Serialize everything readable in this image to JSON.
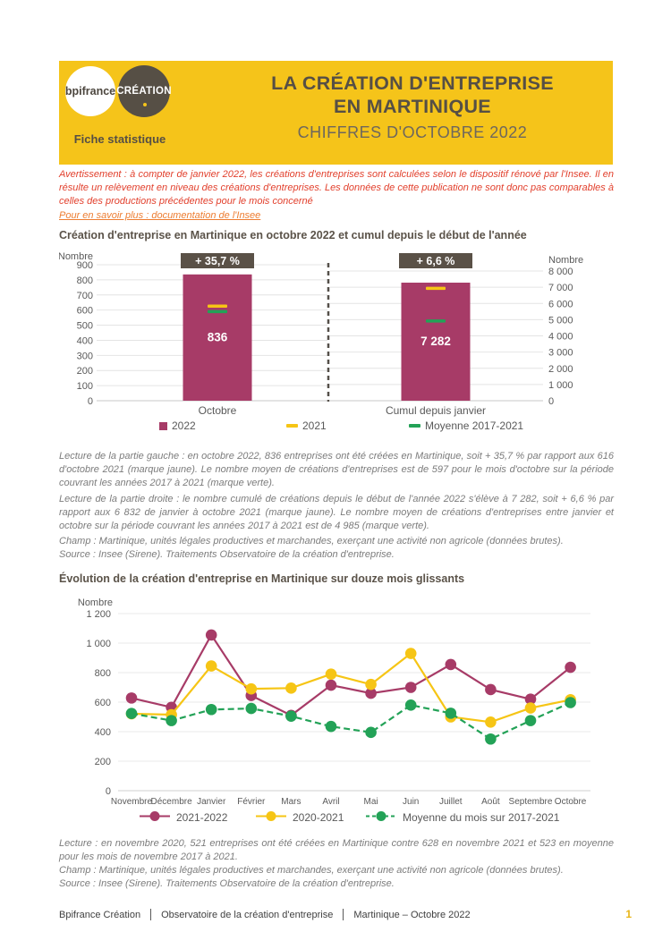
{
  "header": {
    "logo_primary": "bpifrance",
    "logo_secondary": "CRÉATION",
    "tagline": "Fiche statistique",
    "title_line1": "LA CRÉATION D'ENTREPRISE",
    "title_line2": "EN MARTINIQUE",
    "subtitle": "CHIFFRES D'OCTOBRE 2022",
    "bg_color": "#f5c41a"
  },
  "notice": {
    "warning": "Avertissement : à compter de janvier 2022, les créations d'entreprises sont calculées selon le dispositif rénové par l'Insee. Il en résulte un relèvement en niveau des créations d'entreprises. Les données de cette publication ne sont donc pas comparables à celles des productions précédentes pour le mois concerné",
    "link": "Pour en savoir plus : documentation de l'Insee"
  },
  "section1": {
    "title": "Création d'entreprise en Martinique en octobre 2022 et cumul depuis le début de l'année",
    "lecture_left": "Lecture de la partie gauche : en octobre 2022, 836 entreprises ont été créées en Martinique, soit + 35,7 % par rapport aux 616 d'octobre 2021 (marque jaune). Le nombre moyen de créations d'entreprises est de 597 pour le mois d'octobre sur la période couvrant les années 2017 à 2021 (marque verte).",
    "lecture_right": "Lecture de la partie droite : le nombre cumulé de créations depuis le début de l'année 2022 s'élève à 7 282, soit + 6,6 % par rapport aux 6 832 de janvier à octobre 2021 (marque jaune). Le nombre moyen de créations d'entreprises entre janvier et octobre sur la période couvrant les années 2017 à 2021 est de 4 985 (marque verte).",
    "champ": "Champ : Martinique, unités légales productives et marchandes, exerçant une activité non agricole (données brutes).",
    "source": "Source : Insee (Sirene). Traitements Observatoire de la création d'entreprise."
  },
  "section2": {
    "title": "Évolution de la création d'entreprise en Martinique sur douze mois glissants",
    "lecture": "Lecture : en novembre 2020, 521 entreprises ont été créées en Martinique contre 628 en novembre 2021 et 523 en moyenne pour les mois de novembre 2017 à 2021.",
    "champ": "Champ : Martinique, unités légales productives et marchandes, exerçant une activité non agricole (données brutes).",
    "source": "Source : Insee (Sirene). Traitements Observatoire de la création d'entreprise."
  },
  "footer": {
    "items": [
      "Bpifrance Création",
      "Observatoire de la création d'entreprise",
      "Martinique – Octobre 2022"
    ],
    "page": "1"
  },
  "chart_data": [
    {
      "type": "bar",
      "title": "Création d'entreprise en Martinique en octobre 2022 et cumul depuis le début de l'année",
      "ylabel_left": "Nombre",
      "ylabel_right": "Nombre",
      "legend": [
        "2022",
        "2021",
        "Moyenne 2017-2021"
      ],
      "colors": {
        "bar_2022": "#a73b67",
        "mark_2021": "#f6c515",
        "mark_moyenne": "#23a257",
        "badge_bg": "#5a5147"
      },
      "panels": [
        {
          "category": "Octobre",
          "badge": "+ 35,7 %",
          "ylim": [
            0,
            900
          ],
          "ytick_step": 100,
          "value_2022": 836,
          "value_2022_label": "836",
          "value_2021": 616,
          "moyenne_2017_2021": 597
        },
        {
          "category": "Cumul depuis janvier",
          "badge": "+ 6,6 %",
          "ylim": [
            0,
            8000
          ],
          "ytick_step": 1000,
          "value_2022": 7282,
          "value_2022_label": "7 282",
          "value_2021": 6832,
          "moyenne_2017_2021": 4985
        }
      ]
    },
    {
      "type": "line",
      "title": "Évolution de la création d'entreprise en Martinique sur douze mois glissants",
      "ylabel": "Nombre",
      "ylim": [
        0,
        1200
      ],
      "ytick_step": 200,
      "grid": true,
      "legend_position": "bottom",
      "categories": [
        "Novembre",
        "Décembre",
        "Janvier",
        "Février",
        "Mars",
        "Avril",
        "Mai",
        "Juin",
        "Juillet",
        "Août",
        "Septembre",
        "Octobre"
      ],
      "series": [
        {
          "name": "2021-2022",
          "color": "#a73b67",
          "dash": false,
          "values": [
            628,
            565,
            1055,
            645,
            510,
            715,
            660,
            700,
            855,
            685,
            620,
            836
          ]
        },
        {
          "name": "2020-2021",
          "color": "#f6c515",
          "dash": false,
          "values": [
            521,
            515,
            845,
            690,
            695,
            790,
            720,
            930,
            500,
            465,
            560,
            616
          ]
        },
        {
          "name": "Moyenne du mois sur 2017-2021",
          "color": "#23a257",
          "dash": true,
          "values": [
            523,
            475,
            550,
            557,
            505,
            435,
            395,
            580,
            525,
            350,
            475,
            597
          ]
        }
      ]
    }
  ]
}
